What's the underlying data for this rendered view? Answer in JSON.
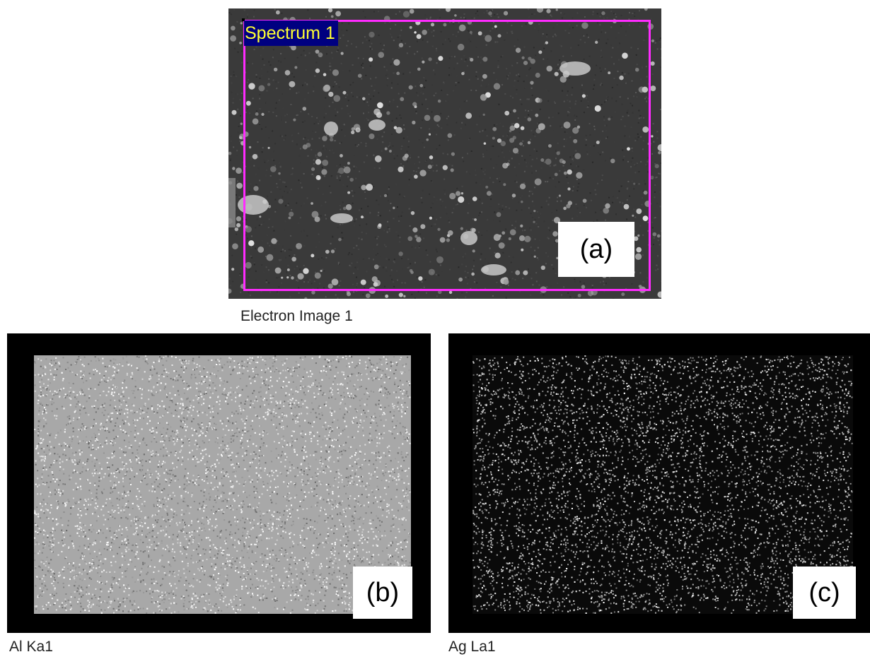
{
  "panels": {
    "a": {
      "caption": "Electron Image 1",
      "overlay_label": "Spectrum 1",
      "letter": "(a)",
      "colors": {
        "background": "#3a3a3a",
        "outline": "#ff2bff",
        "tag_bg": "#000080",
        "tag_text": "#ffff33"
      }
    },
    "b": {
      "caption": "Al Ka1",
      "letter": "(b)",
      "colors": {
        "frame": "#000000",
        "map_base": "#a8a8a8"
      }
    },
    "c": {
      "caption": "Ag La1",
      "letter": "(c)",
      "colors": {
        "frame": "#000000",
        "map_base": "#0a0a0a"
      }
    }
  }
}
